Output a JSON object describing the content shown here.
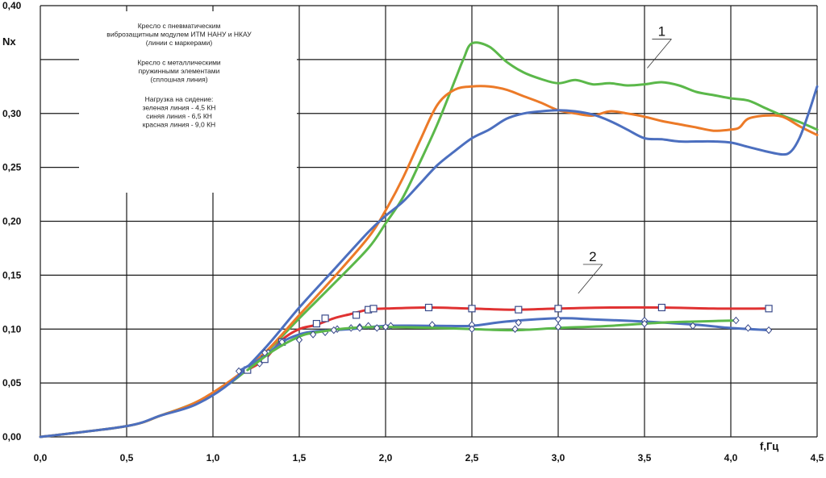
{
  "chart_data": {
    "type": "line",
    "xlabel": "f,Гц",
    "ylabel": "Nx",
    "xlim": [
      0,
      4.5
    ],
    "ylim": [
      0,
      0.4
    ],
    "grid": true,
    "x_ticks": [
      "0,0",
      "0,5",
      "1,0",
      "1,5",
      "2,0",
      "2,5",
      "3,0",
      "3,5",
      "4,0",
      "4,5"
    ],
    "y_ticks": [
      "0,00",
      "0,05",
      "0,10",
      "0,15",
      "0,20",
      "0,25",
      "0,30",
      "0,40"
    ],
    "legend_text": [
      "Кресло с пневматическим",
      "виброзащитным модулем ИТМ НАНУ и НКАУ",
      "(линии с маркерами)",
      "",
      "Кресло с металлическими",
      "пружинными элементами",
      "(сплошная линия)",
      "",
      "Нагрузка на сидение:",
      "зеленая линия - 4,5 КН",
      "синяя линия - 6,5 КН",
      "красная линия - 9,0 КН"
    ],
    "curve_labels": [
      {
        "text": "1",
        "x": 3.6,
        "y": 0.372
      },
      {
        "text": "2",
        "x": 3.2,
        "y": 0.163
      }
    ],
    "series": [
      {
        "color": "#5bb84a",
        "marker": "none",
        "points": [
          [
            0,
            0
          ],
          [
            0.5,
            0.01
          ],
          [
            0.7,
            0.02
          ],
          [
            0.9,
            0.032
          ],
          [
            1.1,
            0.05
          ],
          [
            1.3,
            0.077
          ],
          [
            1.5,
            0.11
          ],
          [
            1.7,
            0.142
          ],
          [
            1.9,
            0.175
          ],
          [
            2.0,
            0.198
          ],
          [
            2.1,
            0.222
          ],
          [
            2.2,
            0.255
          ],
          [
            2.3,
            0.29
          ],
          [
            2.4,
            0.33
          ],
          [
            2.45,
            0.35
          ],
          [
            2.5,
            0.365
          ],
          [
            2.6,
            0.362
          ],
          [
            2.7,
            0.348
          ],
          [
            2.8,
            0.338
          ],
          [
            2.9,
            0.332
          ],
          [
            3.0,
            0.328
          ],
          [
            3.1,
            0.331
          ],
          [
            3.2,
            0.327
          ],
          [
            3.3,
            0.328
          ],
          [
            3.4,
            0.326
          ],
          [
            3.5,
            0.327
          ],
          [
            3.6,
            0.329
          ],
          [
            3.7,
            0.326
          ],
          [
            3.8,
            0.32
          ],
          [
            3.9,
            0.317
          ],
          [
            4.0,
            0.314
          ],
          [
            4.1,
            0.312
          ],
          [
            4.2,
            0.305
          ],
          [
            4.3,
            0.298
          ],
          [
            4.4,
            0.292
          ],
          [
            4.5,
            0.285
          ]
        ]
      },
      {
        "color": "#ec7a28",
        "marker": "none",
        "points": [
          [
            0,
            0
          ],
          [
            0.5,
            0.01
          ],
          [
            0.7,
            0.02
          ],
          [
            0.9,
            0.032
          ],
          [
            1.1,
            0.052
          ],
          [
            1.3,
            0.078
          ],
          [
            1.5,
            0.113
          ],
          [
            1.7,
            0.148
          ],
          [
            1.9,
            0.185
          ],
          [
            2.0,
            0.21
          ],
          [
            2.1,
            0.24
          ],
          [
            2.2,
            0.275
          ],
          [
            2.3,
            0.308
          ],
          [
            2.4,
            0.322
          ],
          [
            2.5,
            0.325
          ],
          [
            2.6,
            0.325
          ],
          [
            2.7,
            0.322
          ],
          [
            2.8,
            0.316
          ],
          [
            2.9,
            0.31
          ],
          [
            3.0,
            0.303
          ],
          [
            3.1,
            0.3
          ],
          [
            3.2,
            0.298
          ],
          [
            3.3,
            0.302
          ],
          [
            3.4,
            0.3
          ],
          [
            3.5,
            0.297
          ],
          [
            3.6,
            0.293
          ],
          [
            3.7,
            0.29
          ],
          [
            3.8,
            0.287
          ],
          [
            3.9,
            0.284
          ],
          [
            4.0,
            0.285
          ],
          [
            4.05,
            0.287
          ],
          [
            4.1,
            0.295
          ],
          [
            4.2,
            0.298
          ],
          [
            4.3,
            0.297
          ],
          [
            4.4,
            0.288
          ],
          [
            4.5,
            0.28
          ]
        ]
      },
      {
        "color": "#4c6fbf",
        "marker": "none",
        "points": [
          [
            0,
            0
          ],
          [
            0.5,
            0.01
          ],
          [
            0.7,
            0.02
          ],
          [
            0.9,
            0.03
          ],
          [
            1.1,
            0.05
          ],
          [
            1.3,
            0.082
          ],
          [
            1.5,
            0.12
          ],
          [
            1.7,
            0.155
          ],
          [
            1.9,
            0.19
          ],
          [
            2.0,
            0.205
          ],
          [
            2.1,
            0.218
          ],
          [
            2.2,
            0.235
          ],
          [
            2.3,
            0.252
          ],
          [
            2.4,
            0.265
          ],
          [
            2.5,
            0.277
          ],
          [
            2.6,
            0.285
          ],
          [
            2.7,
            0.295
          ],
          [
            2.8,
            0.3
          ],
          [
            2.9,
            0.302
          ],
          [
            3.0,
            0.303
          ],
          [
            3.1,
            0.302
          ],
          [
            3.2,
            0.299
          ],
          [
            3.3,
            0.293
          ],
          [
            3.4,
            0.285
          ],
          [
            3.5,
            0.277
          ],
          [
            3.6,
            0.276
          ],
          [
            3.7,
            0.274
          ],
          [
            3.8,
            0.274
          ],
          [
            3.9,
            0.274
          ],
          [
            4.0,
            0.273
          ],
          [
            4.1,
            0.269
          ],
          [
            4.2,
            0.265
          ],
          [
            4.3,
            0.262
          ],
          [
            4.35,
            0.265
          ],
          [
            4.4,
            0.278
          ],
          [
            4.45,
            0.3
          ],
          [
            4.5,
            0.325
          ]
        ]
      },
      {
        "color": "#e03232",
        "marker": "square",
        "points": [
          [
            1.2,
            0.062
          ],
          [
            1.3,
            0.072
          ],
          [
            1.4,
            0.09
          ],
          [
            1.5,
            0.1
          ],
          [
            1.6,
            0.104
          ],
          [
            1.7,
            0.11
          ],
          [
            1.8,
            0.114
          ],
          [
            1.9,
            0.118
          ],
          [
            2.0,
            0.119
          ],
          [
            2.25,
            0.12
          ],
          [
            2.5,
            0.119
          ],
          [
            2.75,
            0.118
          ],
          [
            3.0,
            0.119
          ],
          [
            3.3,
            0.12
          ],
          [
            3.6,
            0.12
          ],
          [
            3.9,
            0.119
          ],
          [
            4.2,
            0.119
          ]
        ],
        "marker_points": [
          [
            1.2,
            0.062
          ],
          [
            1.3,
            0.072
          ],
          [
            1.4,
            0.088
          ],
          [
            1.6,
            0.105
          ],
          [
            1.65,
            0.11
          ],
          [
            1.83,
            0.113
          ],
          [
            1.9,
            0.118
          ],
          [
            1.93,
            0.119
          ],
          [
            2.25,
            0.12
          ],
          [
            2.5,
            0.119
          ],
          [
            2.77,
            0.118
          ],
          [
            3.0,
            0.119
          ],
          [
            3.6,
            0.12
          ],
          [
            4.22,
            0.119
          ]
        ]
      },
      {
        "color": "#4c6fbf",
        "marker": "diamond",
        "points": [
          [
            1.15,
            0.061
          ],
          [
            1.3,
            0.075
          ],
          [
            1.4,
            0.088
          ],
          [
            1.5,
            0.095
          ],
          [
            1.6,
            0.098
          ],
          [
            1.8,
            0.1
          ],
          [
            2.0,
            0.103
          ],
          [
            2.3,
            0.103
          ],
          [
            2.5,
            0.103
          ],
          [
            2.7,
            0.107
          ],
          [
            3.0,
            0.11
          ],
          [
            3.2,
            0.109
          ],
          [
            3.5,
            0.107
          ],
          [
            3.8,
            0.104
          ],
          [
            4.0,
            0.101
          ],
          [
            4.22,
            0.099
          ]
        ],
        "marker_points": [
          [
            1.15,
            0.061
          ],
          [
            1.27,
            0.068
          ],
          [
            1.32,
            0.078
          ],
          [
            1.4,
            0.088
          ],
          [
            1.65,
            0.097
          ],
          [
            1.72,
            0.1
          ],
          [
            1.8,
            0.101
          ],
          [
            1.85,
            0.102
          ],
          [
            1.9,
            0.103
          ],
          [
            2.03,
            0.103
          ],
          [
            2.27,
            0.104
          ],
          [
            2.5,
            0.104
          ],
          [
            2.77,
            0.106
          ],
          [
            3.0,
            0.109
          ],
          [
            3.5,
            0.108
          ],
          [
            3.78,
            0.103
          ],
          [
            4.1,
            0.101
          ],
          [
            4.22,
            0.099
          ]
        ]
      },
      {
        "color": "#5bb84a",
        "marker": "diamond",
        "points": [
          [
            1.2,
            0.062
          ],
          [
            1.35,
            0.08
          ],
          [
            1.5,
            0.093
          ],
          [
            1.6,
            0.097
          ],
          [
            1.8,
            0.101
          ],
          [
            2.0,
            0.102
          ],
          [
            2.3,
            0.101
          ],
          [
            2.5,
            0.1
          ],
          [
            2.75,
            0.099
          ],
          [
            3.0,
            0.101
          ],
          [
            3.3,
            0.103
          ],
          [
            3.6,
            0.106
          ],
          [
            3.8,
            0.107
          ],
          [
            4.03,
            0.108
          ]
        ],
        "marker_points": [
          [
            1.3,
            0.078
          ],
          [
            1.5,
            0.09
          ],
          [
            1.58,
            0.095
          ],
          [
            1.7,
            0.099
          ],
          [
            1.85,
            0.101
          ],
          [
            1.95,
            0.101
          ],
          [
            2.0,
            0.102
          ],
          [
            2.5,
            0.1
          ],
          [
            2.75,
            0.1
          ],
          [
            3.0,
            0.102
          ],
          [
            3.5,
            0.105
          ],
          [
            4.03,
            0.108
          ]
        ]
      }
    ]
  }
}
